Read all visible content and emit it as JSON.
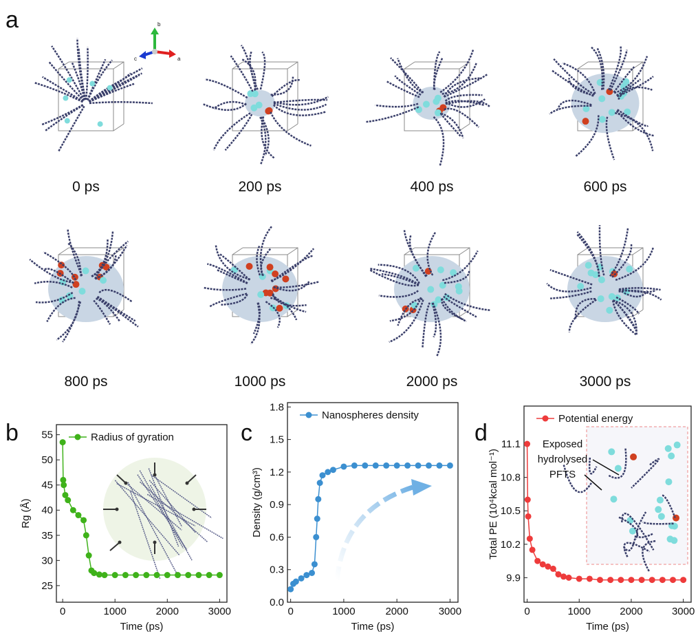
{
  "figure": {
    "panels": [
      "a",
      "b",
      "c",
      "d"
    ],
    "snapshots": [
      "0 ps",
      "200 ps",
      "400 ps",
      "600 ps",
      "800 ps",
      "1000 ps",
      "2000 ps",
      "3000 ps"
    ],
    "triad": [
      "b",
      "c",
      "a"
    ]
  },
  "chart_data": [
    {
      "type": "line",
      "x_label": "Time (ps)",
      "y_label": "Rg (Å)",
      "legend": "upper left",
      "xlim": [
        -120,
        3140
      ],
      "ylim": [
        21.7,
        57
      ],
      "xticks": [
        0,
        1000,
        2000,
        3000
      ],
      "yticks": [
        25,
        30,
        35,
        40,
        45,
        50,
        55
      ],
      "x": [
        0,
        10,
        20,
        50,
        100,
        200,
        300,
        400,
        450,
        500,
        550,
        600,
        700,
        800,
        1000,
        1200,
        1400,
        1600,
        1800,
        2000,
        2200,
        2400,
        2600,
        2800,
        3000
      ],
      "series": [
        {
          "name": "Radius of gyration",
          "color": "#3fb21a",
          "values": [
            53.5,
            46,
            45,
            43,
            42,
            40,
            39,
            38,
            35,
            31,
            28,
            27.5,
            27.2,
            27.1,
            27.1,
            27.1,
            27.1,
            27.1,
            27.1,
            27.1,
            27.1,
            27.1,
            27.1,
            27.1,
            27.1
          ]
        }
      ]
    },
    {
      "type": "line",
      "x_label": "Time (ps)",
      "y_label": "Density (g/cm³)",
      "legend": "upper left",
      "xlim": [
        -60,
        3150
      ],
      "ylim": [
        0,
        1.84
      ],
      "xticks": [
        0,
        1000,
        2000,
        3000
      ],
      "yticks": [
        {
          "value": 0,
          "label": "0.0"
        },
        0.3,
        0.6,
        0.9,
        1.2,
        1.5,
        1.8
      ],
      "x": [
        0,
        50,
        100,
        200,
        300,
        400,
        450,
        480,
        500,
        520,
        550,
        600,
        700,
        800,
        1000,
        1200,
        1400,
        1600,
        1800,
        2000,
        2200,
        2400,
        2600,
        2800,
        3000
      ],
      "series": [
        {
          "name": "Nanospheres density",
          "color": "#3b8fd0",
          "values": [
            0.12,
            0.17,
            0.19,
            0.22,
            0.25,
            0.27,
            0.35,
            0.6,
            0.77,
            0.95,
            1.1,
            1.17,
            1.2,
            1.22,
            1.25,
            1.26,
            1.26,
            1.26,
            1.26,
            1.26,
            1.26,
            1.26,
            1.26,
            1.26,
            1.26
          ]
        }
      ]
    },
    {
      "type": "line",
      "x_label": "Time (ps)",
      "y_label": "Total PE (10⁴kcal mol⁻¹)",
      "legend": "upper left",
      "annotation": [
        "Exposed",
        "hydrolysed",
        "PFTS"
      ],
      "xlim": [
        -60,
        3150
      ],
      "ylim": [
        9.68,
        11.44
      ],
      "xticks": [
        0,
        1000,
        2000,
        3000
      ],
      "yticks": [
        9.9,
        10.2,
        10.5,
        10.8,
        11.1
      ],
      "x": [
        0,
        10,
        20,
        50,
        100,
        200,
        300,
        400,
        500,
        600,
        700,
        800,
        1000,
        1200,
        1400,
        1600,
        1800,
        2000,
        2200,
        2400,
        2600,
        2800,
        3000
      ],
      "series": [
        {
          "name": "Potential energy",
          "color": "#ee3b3b",
          "values": [
            11.1,
            10.6,
            10.45,
            10.25,
            10.15,
            10.05,
            10.02,
            10.0,
            9.98,
            9.93,
            9.91,
            9.9,
            9.89,
            9.89,
            9.88,
            9.88,
            9.88,
            9.88,
            9.88,
            9.88,
            9.88,
            9.88,
            9.88
          ]
        }
      ]
    }
  ]
}
